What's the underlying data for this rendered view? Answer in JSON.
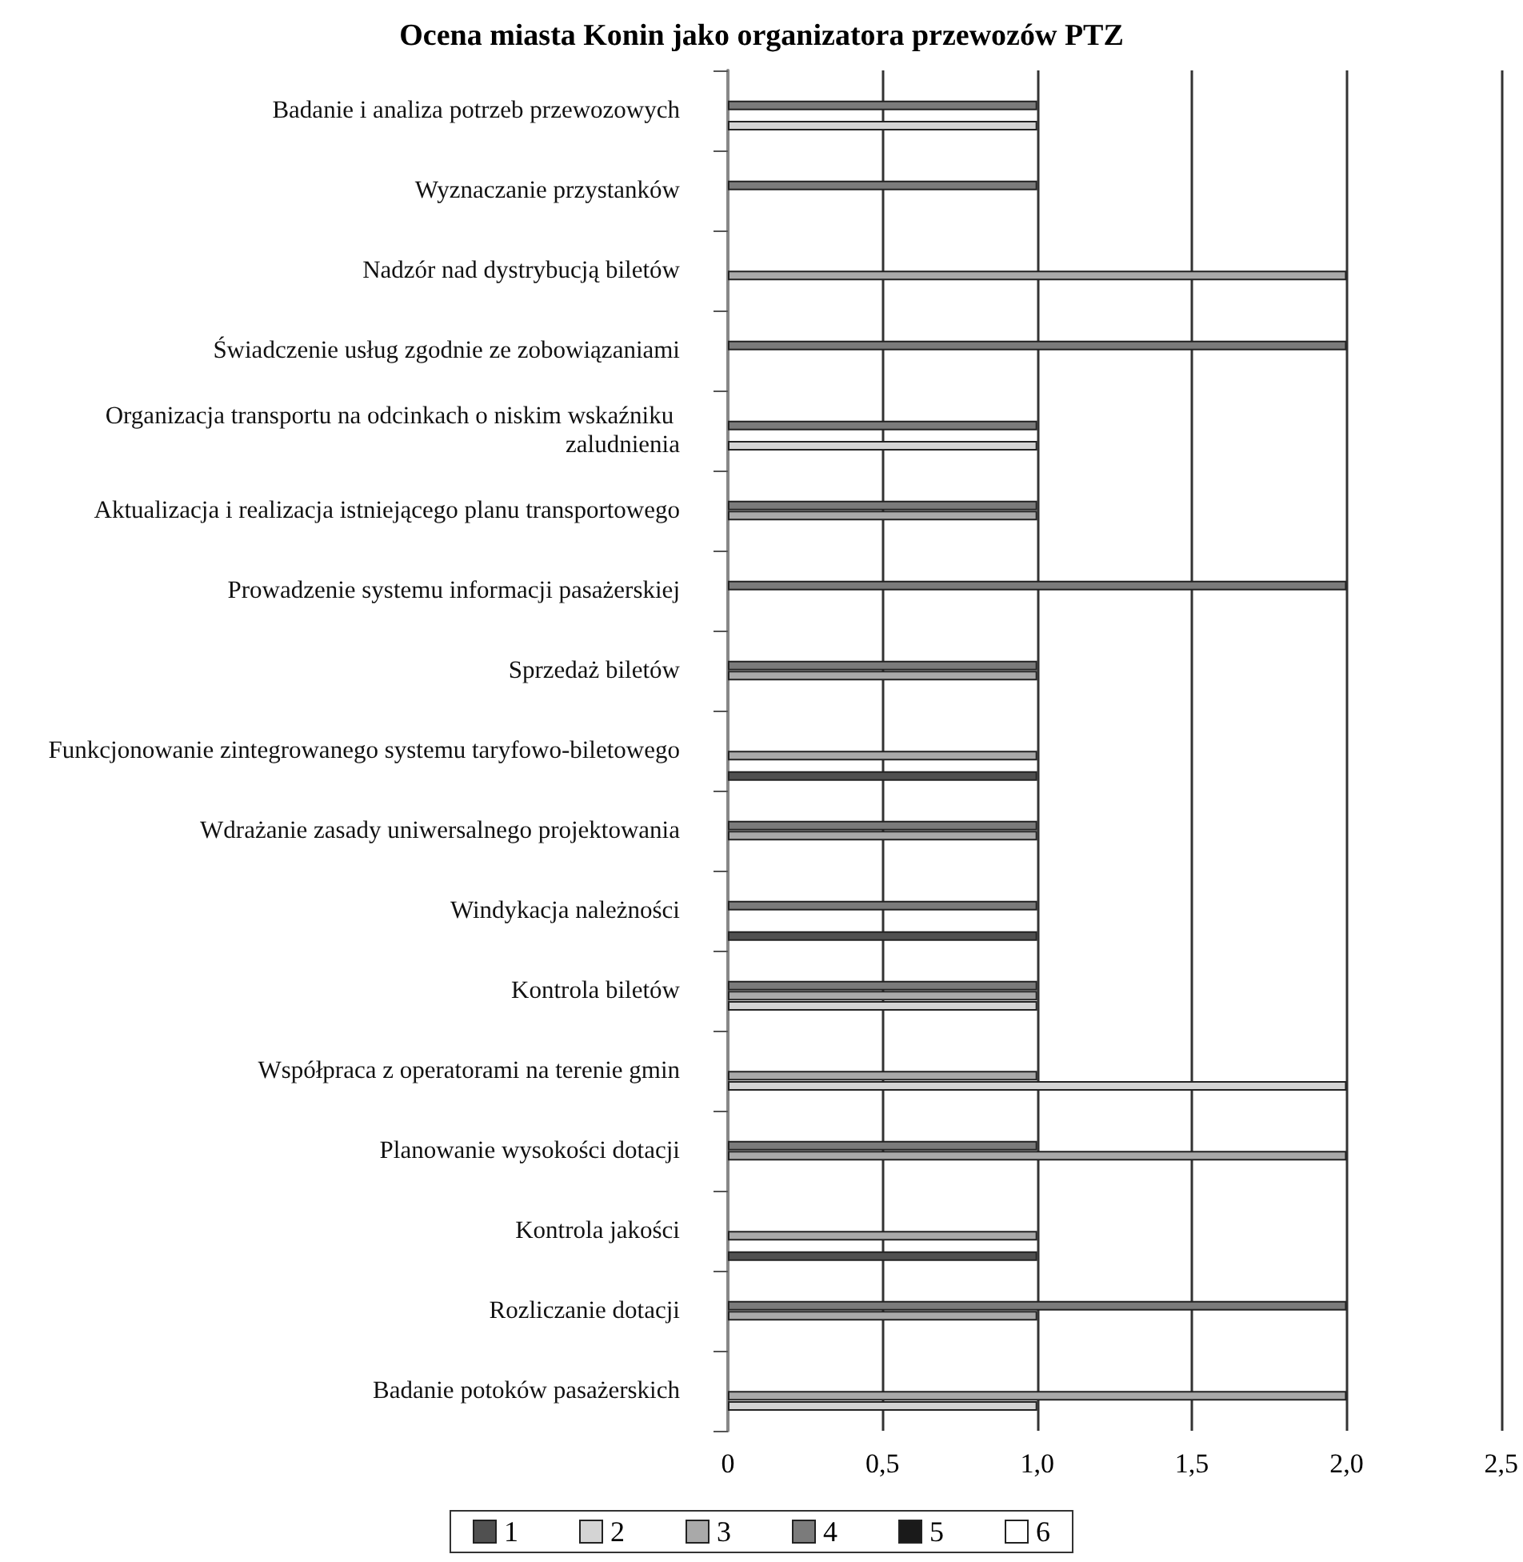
{
  "chart_data": {
    "type": "bar",
    "orientation": "horizontal",
    "title": "Ocena miasta Konin jako organizatora przewozów PTZ",
    "categories": [
      "Badanie i analiza potrzeb przewozowych",
      "Wyznaczanie przystanków",
      "Nadzór nad dystrybucją biletów",
      "Świadczenie usług zgodnie ze zobowiązaniami",
      "Organizacja transportu na odcinkach o niskim wskaźniku zaludnienia",
      "Aktualizacja i realizacja istniejącego planu transportowego",
      "Prowadzenie systemu informacji pasażerskiej",
      "Sprzedaż biletów",
      "Funkcjonowanie zintegrowanego systemu taryfowo-biletowego",
      "Wdrażanie zasady uniwersalnego projektowania",
      "Windykacja należności",
      "Kontrola biletów",
      "Współpraca z operatorami na terenie gmin",
      "Planowanie wysokości dotacji",
      "Kontrola jakości",
      "Rozliczanie dotacji",
      "Badanie potoków pasażerskich"
    ],
    "series": [
      {
        "name": "1",
        "color": "#505050",
        "values": [
          null,
          null,
          null,
          null,
          null,
          null,
          null,
          null,
          1,
          null,
          1,
          null,
          null,
          null,
          1,
          null,
          null
        ]
      },
      {
        "name": "2",
        "color": "#d4d4d4",
        "values": [
          1,
          null,
          null,
          null,
          1,
          null,
          null,
          null,
          null,
          null,
          null,
          1,
          2,
          null,
          null,
          null,
          1
        ]
      },
      {
        "name": "3",
        "color": "#a9a9a9",
        "values": [
          null,
          null,
          2,
          null,
          null,
          1,
          null,
          1,
          1,
          1,
          null,
          1,
          1,
          2,
          1,
          1,
          2
        ]
      },
      {
        "name": "4",
        "color": "#7b7b7b",
        "values": [
          1,
          1,
          null,
          2,
          1,
          1,
          2,
          1,
          null,
          1,
          1,
          1,
          null,
          1,
          null,
          2,
          null
        ]
      },
      {
        "name": "5",
        "color": "#1a1a1a",
        "values": [
          null,
          null,
          null,
          null,
          null,
          null,
          null,
          null,
          null,
          null,
          null,
          null,
          null,
          null,
          null,
          null,
          null
        ]
      },
      {
        "name": "6",
        "color": "#ffffff",
        "values": [
          null,
          null,
          null,
          null,
          null,
          null,
          null,
          null,
          null,
          null,
          null,
          null,
          null,
          null,
          null,
          null,
          null
        ]
      }
    ],
    "xlim": [
      0,
      2.5
    ],
    "xticks": [
      0,
      {
        "value": 0.5,
        "label": "0,5"
      },
      {
        "value": 1,
        "label": "1,0"
      },
      {
        "value": 1.5,
        "label": "1,5"
      },
      {
        "value": 2,
        "label": "2,0"
      },
      {
        "value": 2.5,
        "label": "2,5"
      }
    ],
    "grid": "x",
    "legend": "bottom"
  }
}
